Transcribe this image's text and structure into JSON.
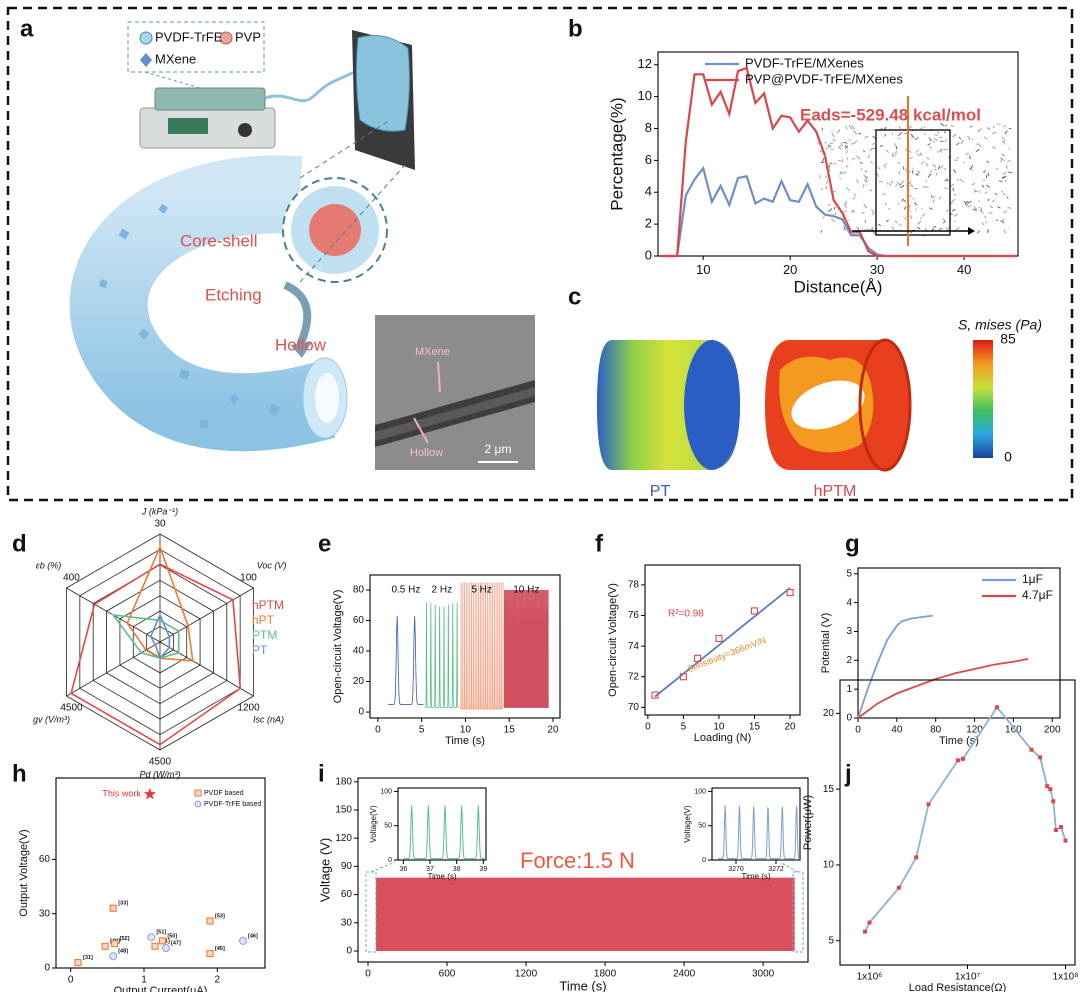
{
  "illustration": {
    "panel": "a",
    "legend": [
      "PVDF-TrFE",
      "PVP",
      "MXene"
    ],
    "steps": [
      "Core-shell",
      "Etching",
      "Hollow"
    ],
    "micrograph": {
      "labels": [
        "MXene",
        "Hollow"
      ],
      "scale_bar": "2 μm"
    }
  },
  "simulation": {
    "panel": "c",
    "colorbar_title": "S, mises (Pa)",
    "colorbar_range": [
      0,
      85
    ],
    "colorbar_ticks": [
      85,
      0
    ],
    "models": [
      "PT",
      "hPTM"
    ]
  },
  "chart_data": [
    {
      "type": "line",
      "panel": "b",
      "xlabel": "Distance(Å)",
      "ylabel": "Percentage(%)",
      "xlim": [
        4.8,
        46.2
      ],
      "ylim": [
        0,
        12.8
      ],
      "xticks": [
        10,
        20,
        30,
        40
      ],
      "yticks": [
        0,
        2,
        4,
        6,
        8,
        10,
        12
      ],
      "legend": "upper center",
      "annotations": [
        "Eads=-529.48 kcal/mol"
      ],
      "x": [
        5,
        6,
        7,
        8,
        9,
        10,
        11,
        12,
        13,
        14,
        15,
        16,
        17,
        18,
        19,
        20,
        21,
        22,
        23,
        24,
        25,
        26,
        27,
        28,
        29,
        30,
        31,
        46
      ],
      "series": [
        {
          "name": "PVDF-TrFE/MXenes",
          "color": "#6f8fcc",
          "values": [
            0,
            0,
            0,
            3.8,
            4.8,
            5.5,
            3.4,
            4.4,
            3.2,
            4.9,
            5.0,
            3.3,
            3.6,
            3.4,
            4.7,
            3.5,
            3.4,
            4.5,
            3.1,
            2.6,
            2.5,
            2.3,
            1.3,
            1.3,
            0.5,
            0.1,
            0,
            0
          ]
        },
        {
          "name": "PVP@PVDF-TrFE/MXenes",
          "color": "#d9464e",
          "values": [
            0,
            0,
            0,
            7.2,
            11.4,
            11.4,
            9.5,
            10.3,
            8.9,
            11.6,
            11.8,
            9.6,
            10.2,
            8.0,
            8.8,
            8.7,
            7.8,
            8.5,
            7.8,
            6.3,
            3.5,
            2.7,
            1.5,
            1.5,
            0.3,
            0,
            0,
            0
          ]
        }
      ]
    },
    {
      "type": "radar",
      "panel": "d",
      "rings": 7,
      "axes": [
        {
          "label": "J (kPa⁻¹)",
          "max": 30
        },
        {
          "label": "Voc (V)",
          "max": 100
        },
        {
          "label": "Isc (nA)",
          "max": 1200
        },
        {
          "label": "Pd (W/m³)",
          "max": 4500
        },
        {
          "label": "gv (V/m³)",
          "max": 4500
        },
        {
          "label": "εb (%)",
          "max": 400
        }
      ],
      "series": [
        {
          "name": "hPTM",
          "color": "#e2474a",
          "values": [
            21.6,
            78,
            1030,
            4275,
            4275,
            280
          ]
        },
        {
          "name": "hPT",
          "color": "#f07b2c",
          "values": [
            26.4,
            30,
            420,
            675,
            675,
            140
          ]
        },
        {
          "name": "PTM",
          "color": "#5cbf8a",
          "values": [
            6,
            20,
            240,
            675,
            900,
            200
          ]
        },
        {
          "name": "PT",
          "color": "#6a8fd0",
          "values": [
            7.5,
            10,
            120,
            675,
            225,
            40
          ]
        }
      ]
    },
    {
      "type": "waveform",
      "panel": "e",
      "xlabel": "Time (s)",
      "ylabel": "Open-circuit Voltage(V)",
      "xlim": [
        -0.9,
        20.8
      ],
      "ylim": [
        -3.9,
        89.8
      ],
      "xticks": [
        0,
        5,
        10,
        15,
        20
      ],
      "yticks": [
        0,
        20,
        40,
        60,
        80
      ],
      "segments": [
        {
          "label": "0.5 Hz",
          "color": "#3b5bab",
          "start": 1.2,
          "end": 5.2,
          "frequency": 0.5,
          "peak": 63,
          "base": 5
        },
        {
          "label": "2 Hz",
          "color": "#5cc08a",
          "start": 5.3,
          "end": 9.3,
          "frequency": 2,
          "peak": 72,
          "base": 3
        },
        {
          "label": "5 Hz",
          "color": "#f3a58a",
          "start": 9.4,
          "end": 14.3,
          "frequency": 5,
          "peak": 85,
          "base": 2
        },
        {
          "label": "10 Hz",
          "color": "#d05060",
          "start": 14.4,
          "end": 19.5,
          "frequency": 10,
          "peak": 80,
          "base": 3
        }
      ]
    },
    {
      "type": "scatter",
      "panel": "f",
      "xlabel": "Loading (N)",
      "ylabel": "Open-circuit Voltage(V)",
      "xlim": [
        -0.4,
        21.4
      ],
      "ylim": [
        69.5,
        79.3
      ],
      "xticks": [
        0,
        5,
        10,
        15,
        20
      ],
      "yticks": [
        70,
        72,
        74,
        76,
        78
      ],
      "annotations": [
        "R²=0.98",
        "Sensitivity=366mV/N"
      ],
      "series": [
        {
          "color": "#e0484a",
          "x": [
            1,
            5,
            7,
            10,
            15,
            20
          ],
          "values": [
            70.8,
            72.0,
            73.2,
            74.5,
            76.3,
            77.5
          ]
        }
      ],
      "fit": {
        "color": "#5b7ec3",
        "x": [
          1,
          20
        ],
        "values": [
          70.7,
          77.8
        ]
      }
    },
    {
      "type": "line",
      "panel": "g",
      "xlabel": "Time (s)",
      "ylabel": "Potential (V)",
      "xlim": [
        0,
        208
      ],
      "ylim": [
        0,
        5.2
      ],
      "xticks": [
        0,
        40,
        80,
        120,
        160,
        200
      ],
      "yticks": [
        0,
        1,
        2,
        3,
        4,
        5
      ],
      "legend": "upper right",
      "series": [
        {
          "name": "1μF",
          "color": "#7a9fd6",
          "x": [
            0,
            10,
            20,
            30,
            40,
            45,
            55,
            77
          ],
          "values": [
            0,
            1.0,
            1.9,
            2.7,
            3.2,
            3.35,
            3.45,
            3.55
          ]
        },
        {
          "name": "4.7μF",
          "color": "#d94a4a",
          "x": [
            0,
            20,
            40,
            60,
            80,
            100,
            120,
            140,
            160,
            175
          ],
          "values": [
            0,
            0.5,
            0.85,
            1.1,
            1.35,
            1.55,
            1.7,
            1.85,
            1.95,
            2.05
          ]
        }
      ]
    },
    {
      "type": "scatter",
      "panel": "h",
      "xlabel": "Output Current(μA)",
      "ylabel": "Output Voltage(V)",
      "xlim": [
        -0.2,
        2.65
      ],
      "ylim": [
        0,
        105
      ],
      "xticks": [
        0,
        1,
        2
      ],
      "yticks": [
        0,
        30,
        60
      ],
      "legend": "upper right",
      "highlight": {
        "name": "This work",
        "x": 1.08,
        "value": 96,
        "color": "#e8343a"
      },
      "series": [
        {
          "name": "PVDF based",
          "color": "#f07a3a",
          "marker": "square",
          "x": [
            0.1,
            0.47,
            0.6,
            0.58,
            1.15,
            1.25,
            1.9,
            1.9
          ],
          "values": [
            3,
            12,
            13.5,
            33,
            12,
            15,
            8,
            26
          ],
          "labels": [
            "[31]",
            "[49]",
            "[52]",
            "[33]",
            "[41]",
            "[50]",
            "[45]",
            "[53]"
          ]
        },
        {
          "name": "PVDF-TrFE based",
          "color": "#8fa3e0",
          "marker": "circle",
          "x": [
            0.58,
            1.1,
            1.3,
            2.35
          ],
          "values": [
            6.5,
            17,
            11,
            15
          ],
          "labels": [
            "[48]",
            "[51]",
            "[47]",
            "[46]"
          ]
        }
      ]
    },
    {
      "type": "band",
      "panel": "i",
      "xlabel": "Time (s)",
      "ylabel": "Voltage (V)",
      "xlim": [
        -76,
        3341
      ],
      "ylim": [
        -11.7,
        184
      ],
      "xticks": [
        0,
        600,
        1200,
        1800,
        2400,
        3000
      ],
      "yticks": [
        0,
        30,
        60,
        90,
        120,
        150,
        180
      ],
      "annotations": [
        "Force:1.5 N"
      ],
      "bands": [
        {
          "color": "#d9505c",
          "start": 60,
          "end": 3240,
          "peak": 78
        }
      ],
      "insets": [
        {
          "xlabel": "Time (s)",
          "ylabel": "Voltage(V)",
          "xlim": [
            35.8,
            39.1
          ],
          "ylim": [
            0,
            105
          ],
          "xticks": [
            36,
            37,
            38,
            39
          ],
          "yticks": [
            0,
            50,
            100
          ],
          "color": "#5cc08a",
          "start": 36,
          "end": 39.1,
          "frequency": 1.6,
          "peak": 80,
          "base": 2
        },
        {
          "xlabel": "Time (s)",
          "ylabel": "Voltage(V)",
          "xlim": [
            3268.8,
            3273.2
          ],
          "ylim": [
            0,
            105
          ],
          "xticks": [
            3270,
            3272
          ],
          "yticks": [
            0,
            50,
            100
          ],
          "color": "#7a9fd6",
          "start": 3269.1,
          "end": 3273.2,
          "frequency": 1.4,
          "peak": 80,
          "base": 2
        }
      ]
    },
    {
      "type": "line",
      "panel": "j",
      "xlabel": "Load Resistance(Ω)",
      "ylabel": "Power(μW)",
      "xlog": true,
      "xlim": [
        500000,
        125000000
      ],
      "ylim": [
        3.4,
        22.2
      ],
      "xticks": [
        {
          "value": 1000000,
          "label": "1x10⁶"
        },
        {
          "value": 10000000,
          "label": "1x10⁷"
        },
        {
          "value": 100000000,
          "label": "1x10⁸"
        }
      ],
      "yticks": [
        5,
        10,
        15,
        20
      ],
      "series": [
        {
          "color": "#8fb0dd",
          "marker_color": "#e0484a",
          "x": [
            900000,
            1000000,
            2000000,
            3000000,
            4000000,
            8000000,
            9000000,
            20000000,
            45000000,
            55000000,
            65000000,
            70000000,
            75000000,
            80000000,
            90000000,
            100000000
          ],
          "values": [
            5.6,
            6.2,
            8.5,
            10.5,
            14,
            16.9,
            17,
            20.4,
            17.6,
            17.1,
            15.2,
            15,
            14.2,
            12.3,
            12.5,
            11.6
          ]
        }
      ]
    }
  ]
}
